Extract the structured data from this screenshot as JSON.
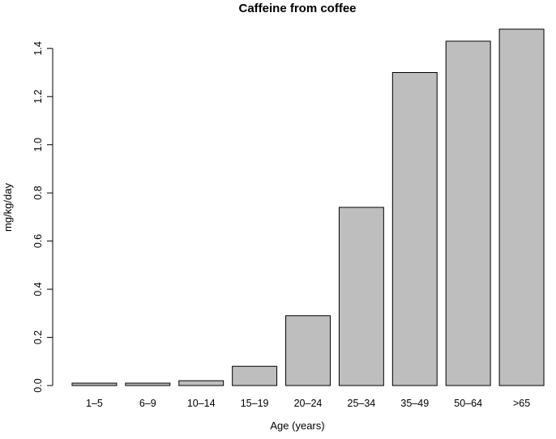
{
  "chart_data": {
    "type": "bar",
    "title": "Caffeine from coffee",
    "xlabel": "Age (years)",
    "ylabel": "mg/kg/day",
    "categories": [
      "1–5",
      "6–9",
      "10–14",
      "15–19",
      "20–24",
      "25–34",
      "35–49",
      "50–64",
      ">65"
    ],
    "values": [
      0.01,
      0.01,
      0.02,
      0.08,
      0.29,
      0.74,
      1.3,
      1.43,
      1.48
    ],
    "ylim": [
      0,
      1.48
    ],
    "yticks": [
      "0.0",
      "0.2",
      "0.4",
      "0.6",
      "0.8",
      "1.0",
      "1.2",
      "1.4"
    ],
    "bar_color": "#bebebe",
    "bar_edge_color": "#000000",
    "grid": false,
    "legend": "none"
  }
}
